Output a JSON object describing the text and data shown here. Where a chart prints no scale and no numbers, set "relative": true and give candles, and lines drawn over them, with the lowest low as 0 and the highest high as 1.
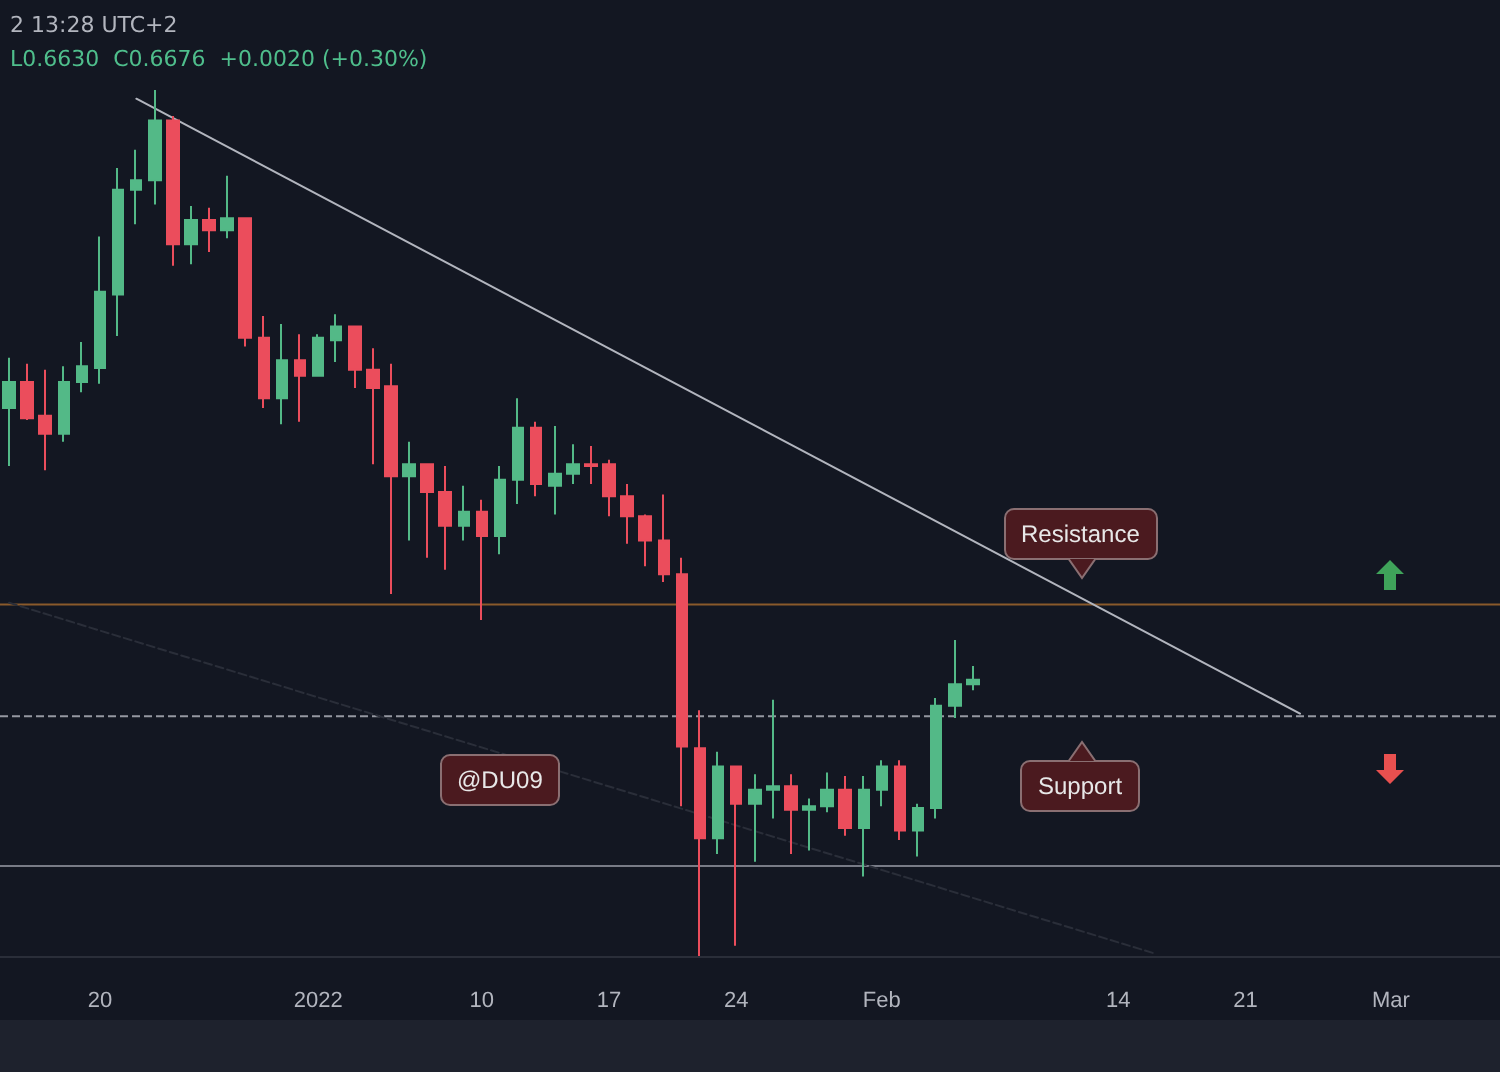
{
  "chart_data": {
    "type": "candlestick",
    "title": "2 13:28 UTC+2",
    "subtitle": "L0.6630  C0.6676  +0.0020 (+0.30%)",
    "relative": true,
    "grid": false,
    "tick_labels": "x",
    "xlim": [
      "2021-12-14T12:00",
      "2022-03-07T00:00"
    ],
    "xticks": [
      {
        "value": "2021-12-20",
        "label": "20"
      },
      {
        "value": "2022-01-01",
        "label": "2022"
      },
      {
        "value": "2022-01-10",
        "label": "10"
      },
      {
        "value": "2022-01-17",
        "label": "17"
      },
      {
        "value": "2022-01-24",
        "label": "24"
      },
      {
        "value": "2022-02-01",
        "label": "Feb"
      },
      {
        "value": "2022-02-14",
        "label": "14"
      },
      {
        "value": "2022-02-21",
        "label": "21"
      },
      {
        "value": "2022-03-01",
        "label": "Mar"
      }
    ],
    "series": [
      {
        "type": "candlestick",
        "x": [
          "2021-12-15",
          "2021-12-16",
          "2021-12-17",
          "2021-12-18",
          "2021-12-19",
          "2021-12-20",
          "2021-12-21",
          "2021-12-22",
          "2021-12-23",
          "2021-12-24",
          "2021-12-25",
          "2021-12-26",
          "2021-12-27",
          "2021-12-28",
          "2021-12-29",
          "2021-12-30",
          "2021-12-31",
          "2022-01-01",
          "2022-01-02",
          "2022-01-03",
          "2022-01-04",
          "2022-01-05",
          "2022-01-06",
          "2022-01-07",
          "2022-01-08",
          "2022-01-09",
          "2022-01-10",
          "2022-01-11",
          "2022-01-12",
          "2022-01-13",
          "2022-01-14",
          "2022-01-15",
          "2022-01-16",
          "2022-01-17",
          "2022-01-18",
          "2022-01-19",
          "2022-01-20",
          "2022-01-21",
          "2022-01-22",
          "2022-01-23",
          "2022-01-24",
          "2022-01-25",
          "2022-01-26",
          "2022-01-27",
          "2022-01-28",
          "2022-01-29",
          "2022-01-30",
          "2022-01-31",
          "2022-02-01",
          "2022-02-02",
          "2022-02-03",
          "2022-02-04",
          "2022-02-05",
          "2022-02-06"
        ],
        "ohlc": [
          [
            0.633,
            0.691,
            0.566,
            0.663
          ],
          [
            0.663,
            0.684,
            0.619,
            0.621
          ],
          [
            0.624,
            0.677,
            0.561,
            0.603
          ],
          [
            0.603,
            0.681,
            0.594,
            0.663
          ],
          [
            0.663,
            0.709,
            0.651,
            0.681
          ],
          [
            0.679,
            0.831,
            0.661,
            0.767
          ],
          [
            0.764,
            0.91,
            0.716,
            0.885
          ],
          [
            0.885,
            0.931,
            0.845,
            0.896
          ],
          [
            0.896,
            1,
            0.868,
            0.965
          ],
          [
            0.965,
            0.97,
            0.797,
            0.822
          ],
          [
            0.822,
            0.866,
            0.799,
            0.85
          ],
          [
            0.85,
            0.864,
            0.813,
            0.838
          ],
          [
            0.838,
            0.901,
            0.829,
            0.852
          ],
          [
            0.852,
            0.852,
            0.704,
            0.714
          ],
          [
            0.714,
            0.739,
            0.633,
            0.644
          ],
          [
            0.644,
            0.73,
            0.614,
            0.688
          ],
          [
            0.688,
            0.718,
            0.617,
            0.67
          ],
          [
            0.67,
            0.718,
            0.67,
            0.714
          ],
          [
            0.711,
            0.741,
            0.686,
            0.727
          ],
          [
            0.727,
            0.727,
            0.656,
            0.677
          ],
          [
            0.677,
            0.702,
            0.568,
            0.656
          ],
          [
            0.658,
            0.684,
            0.418,
            0.554
          ],
          [
            0.554,
            0.594,
            0.48,
            0.568
          ],
          [
            0.568,
            0.568,
            0.46,
            0.536
          ],
          [
            0.536,
            0.566,
            0.446,
            0.497
          ],
          [
            0.497,
            0.543,
            0.48,
            0.513
          ],
          [
            0.513,
            0.527,
            0.388,
            0.485
          ],
          [
            0.485,
            0.566,
            0.464,
            0.55
          ],
          [
            0.55,
            0.644,
            0.522,
            0.61
          ],
          [
            0.61,
            0.617,
            0.531,
            0.545
          ],
          [
            0.543,
            0.612,
            0.51,
            0.557
          ],
          [
            0.557,
            0.591,
            0.545,
            0.568
          ],
          [
            0.568,
            0.589,
            0.545,
            0.566
          ],
          [
            0.568,
            0.573,
            0.508,
            0.531
          ],
          [
            0.531,
            0.545,
            0.476,
            0.508
          ],
          [
            0.508,
            0.51,
            0.45,
            0.48
          ],
          [
            0.48,
            0.533,
            0.432,
            0.441
          ],
          [
            0.441,
            0.46,
            0.173,
            0.242
          ],
          [
            0.24,
            0.284,
            0,
            0.136
          ],
          [
            0.136,
            0.236,
            0.118,
            0.219
          ],
          [
            0.219,
            0.219,
            0.012,
            0.176
          ],
          [
            0.176,
            0.21,
            0.109,
            0.192
          ],
          [
            0.192,
            0.296,
            0.159,
            0.196
          ],
          [
            0.196,
            0.21,
            0.118,
            0.169
          ],
          [
            0.169,
            0.182,
            0.122,
            0.173
          ],
          [
            0.173,
            0.212,
            0.166,
            0.192
          ],
          [
            0.192,
            0.208,
            0.139,
            0.148
          ],
          [
            0.148,
            0.208,
            0.092,
            0.192
          ],
          [
            0.192,
            0.226,
            0.173,
            0.219
          ],
          [
            0.219,
            0.226,
            0.134,
            0.145
          ],
          [
            0.145,
            0.176,
            0.115,
            0.171
          ],
          [
            0.171,
            0.298,
            0.159,
            0.289
          ],
          [
            0.289,
            0.365,
            0.275,
            0.314
          ],
          [
            0.314,
            0.335,
            0.307,
            0.319
          ]
        ],
        "colors": [
          "#53b987",
          "#eb4d5c",
          "#eb4d5c",
          "#53b987",
          "#53b987",
          "#53b987",
          "#53b987",
          "#53b987",
          "#53b987",
          "#eb4d5c",
          "#53b987",
          "#eb4d5c",
          "#53b987",
          "#eb4d5c",
          "#eb4d5c",
          "#53b987",
          "#eb4d5c",
          "#53b987",
          "#53b987",
          "#eb4d5c",
          "#eb4d5c",
          "#eb4d5c",
          "#53b987",
          "#eb4d5c",
          "#eb4d5c",
          "#53b987",
          "#eb4d5c",
          "#53b987",
          "#53b987",
          "#eb4d5c",
          "#53b987",
          "#53b987",
          "#eb4d5c",
          "#eb4d5c",
          "#eb4d5c",
          "#eb4d5c",
          "#eb4d5c",
          "#eb4d5c",
          "#eb4d5c",
          "#53b987",
          "#eb4d5c",
          "#53b987",
          "#53b987",
          "#eb4d5c",
          "#53b987",
          "#53b987",
          "#eb4d5c",
          "#53b987",
          "#53b987",
          "#eb4d5c",
          "#53b987",
          "#53b987",
          "#53b987",
          "#53b987"
        ]
      },
      {
        "type": "line",
        "x": [
          "2021-12-22",
          "2022-02-24"
        ],
        "values": [
          0.99,
          0.28
        ],
        "color": "#b2b5be",
        "line_style": "solid"
      },
      {
        "type": "line",
        "x": [
          "2021-12-15",
          "2022-02-16"
        ],
        "values": [
          0.408,
          0.003
        ],
        "color": "#2a2e39",
        "line_style": "dashed"
      }
    ],
    "ref_lines": [
      {
        "axis": "y",
        "value": 0.406,
        "color": "#8a5a2b",
        "line_style": "solid"
      },
      {
        "axis": "y",
        "value": 0.277,
        "color": "#9598a1",
        "line_style": "dashed"
      },
      {
        "axis": "y",
        "value": 0.104,
        "color": "#787b86",
        "line_style": "solid"
      }
    ],
    "annotations": [
      "Resistance",
      "Support",
      "@DU09"
    ]
  }
}
